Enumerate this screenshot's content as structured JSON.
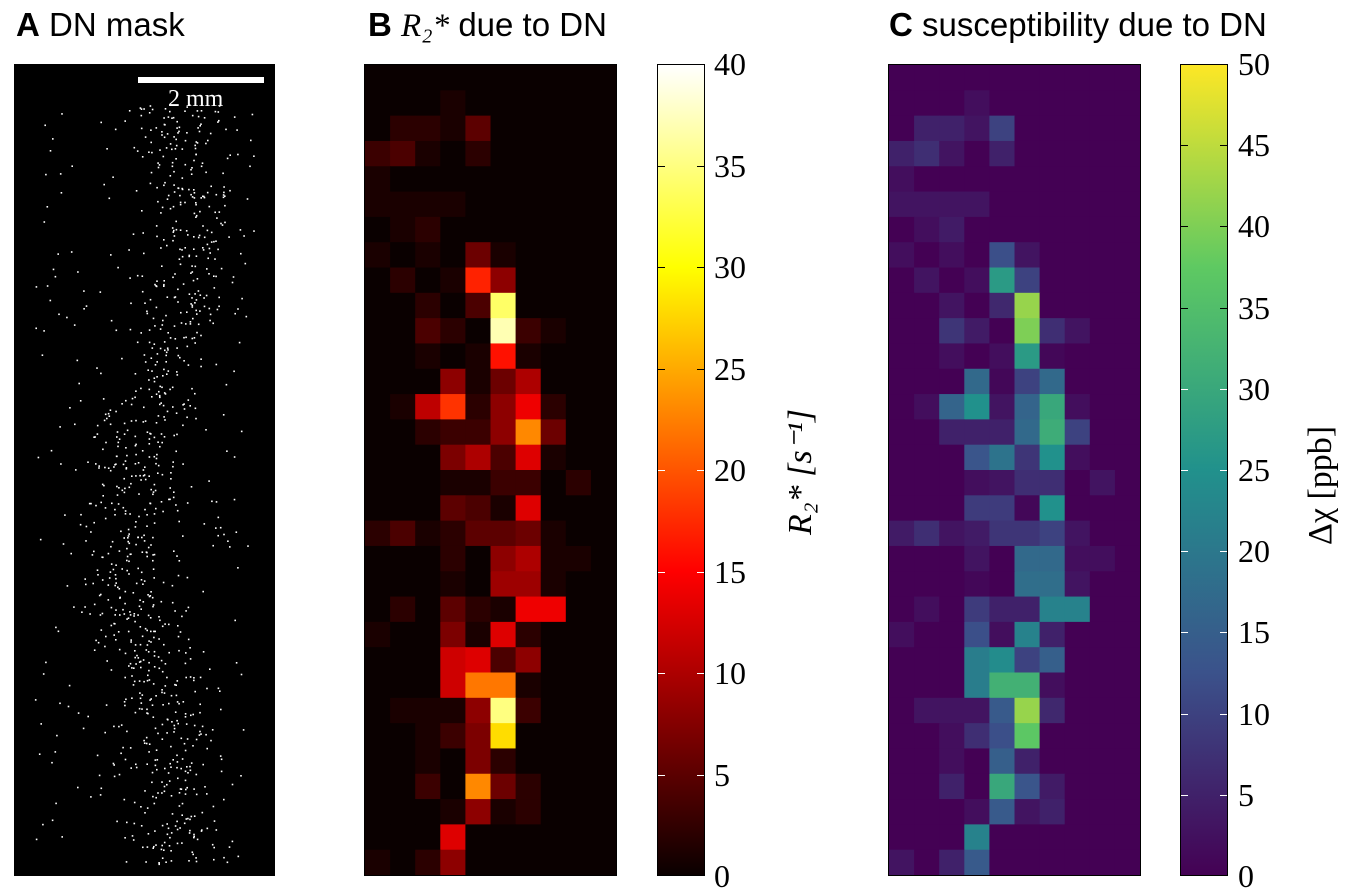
{
  "panels": {
    "a": {
      "letter": "A",
      "title": "DN mask",
      "scalebar_label": "2 mm"
    },
    "b": {
      "letter": "B",
      "title_math": "R₂*",
      "title_rest": " due to DN",
      "colorbar_label": "R₂* [s⁻¹]",
      "ticks": [
        "0",
        "5",
        "10",
        "15",
        "20",
        "25",
        "30",
        "35",
        "40"
      ],
      "vmin": 0,
      "vmax": 40
    },
    "c": {
      "letter": "C",
      "title": "susceptibility due to DN",
      "colorbar_label": "Δχ [ppb]",
      "ticks": [
        "0",
        "5",
        "10",
        "15",
        "20",
        "25",
        "30",
        "35",
        "40",
        "45",
        "50"
      ],
      "vmin": 0,
      "vmax": 50
    }
  },
  "chart_data": [
    {
      "type": "heatmap",
      "title": "R2* due to DN",
      "colormap": "hot",
      "unit": "s^-1",
      "range": [
        0,
        40
      ],
      "grid_cols": 10,
      "grid_rows": 32,
      "values": [
        [
          0,
          0,
          0,
          0,
          0,
          0,
          0,
          0,
          0,
          0
        ],
        [
          0,
          0,
          0,
          1,
          0,
          0,
          0,
          0,
          0,
          0
        ],
        [
          0,
          2,
          2,
          1,
          5,
          0,
          0,
          0,
          0,
          0
        ],
        [
          3,
          4,
          1,
          0,
          2,
          0,
          0,
          0,
          0,
          0
        ],
        [
          1,
          0,
          0,
          0,
          0,
          0,
          0,
          0,
          0,
          0
        ],
        [
          1,
          1,
          1,
          1,
          0,
          0,
          0,
          0,
          0,
          0
        ],
        [
          0,
          1,
          2,
          0,
          0,
          0,
          0,
          0,
          0,
          0
        ],
        [
          1,
          0,
          1,
          0,
          6,
          1,
          0,
          0,
          0,
          0
        ],
        [
          0,
          2,
          0,
          1,
          17,
          8,
          0,
          0,
          0,
          0
        ],
        [
          0,
          0,
          2,
          0,
          4,
          34,
          0,
          0,
          0,
          0
        ],
        [
          0,
          0,
          4,
          2,
          0,
          37,
          3,
          1,
          0,
          0
        ],
        [
          0,
          0,
          1,
          0,
          1,
          16,
          1,
          0,
          0,
          0
        ],
        [
          0,
          0,
          0,
          8,
          1,
          6,
          10,
          0,
          0,
          0
        ],
        [
          0,
          1,
          11,
          18,
          2,
          8,
          14,
          2,
          0,
          0
        ],
        [
          0,
          0,
          2,
          3,
          3,
          8,
          23,
          6,
          0,
          0
        ],
        [
          0,
          0,
          0,
          7,
          10,
          4,
          13,
          1,
          0,
          0
        ],
        [
          0,
          0,
          0,
          1,
          1,
          3,
          3,
          0,
          2,
          0
        ],
        [
          0,
          0,
          0,
          5,
          4,
          1,
          13,
          0,
          0,
          0
        ],
        [
          2,
          4,
          1,
          2,
          5,
          5,
          6,
          1,
          0,
          0
        ],
        [
          0,
          0,
          0,
          2,
          0,
          8,
          10,
          1,
          1,
          0
        ],
        [
          0,
          0,
          0,
          1,
          0,
          9,
          9,
          1,
          0,
          0
        ],
        [
          0,
          2,
          0,
          5,
          2,
          1,
          14,
          14,
          0,
          0
        ],
        [
          1,
          0,
          0,
          7,
          1,
          13,
          2,
          0,
          0,
          0
        ],
        [
          0,
          0,
          0,
          12,
          13,
          4,
          8,
          0,
          0,
          0
        ],
        [
          0,
          0,
          0,
          12,
          22,
          22,
          1,
          0,
          0,
          0
        ],
        [
          0,
          1,
          1,
          1,
          8,
          35,
          3,
          0,
          0,
          0
        ],
        [
          0,
          0,
          1,
          3,
          7,
          28,
          0,
          0,
          0,
          0
        ],
        [
          0,
          0,
          1,
          0,
          7,
          2,
          0,
          0,
          0,
          0
        ],
        [
          0,
          0,
          3,
          0,
          23,
          6,
          2,
          0,
          0,
          0
        ],
        [
          0,
          0,
          0,
          1,
          8,
          1,
          2,
          0,
          0,
          0
        ],
        [
          0,
          0,
          0,
          13,
          0,
          0,
          0,
          0,
          0,
          0
        ],
        [
          1,
          0,
          2,
          8,
          0,
          0,
          0,
          0,
          0,
          0
        ]
      ]
    },
    {
      "type": "heatmap",
      "title": "susceptibility due to DN",
      "colormap": "viridis",
      "unit": "ppb",
      "range": [
        0,
        50
      ],
      "grid_cols": 10,
      "grid_rows": 32,
      "values": [
        [
          0,
          0,
          0,
          0,
          0,
          0,
          0,
          0,
          0,
          0
        ],
        [
          0,
          0,
          0,
          2,
          0,
          0,
          0,
          0,
          0,
          0
        ],
        [
          0,
          5,
          5,
          3,
          10,
          0,
          0,
          0,
          0,
          0
        ],
        [
          5,
          7,
          3,
          0,
          5,
          0,
          0,
          0,
          0,
          0
        ],
        [
          2,
          0,
          0,
          0,
          0,
          0,
          0,
          0,
          0,
          0
        ],
        [
          3,
          3,
          3,
          3,
          0,
          0,
          0,
          0,
          0,
          0
        ],
        [
          0,
          2,
          4,
          0,
          0,
          0,
          0,
          0,
          0,
          0
        ],
        [
          2,
          0,
          2,
          0,
          12,
          3,
          0,
          0,
          0,
          0
        ],
        [
          0,
          3,
          0,
          2,
          27,
          10,
          0,
          0,
          0,
          0
        ],
        [
          0,
          0,
          3,
          0,
          6,
          42,
          0,
          0,
          0,
          0
        ],
        [
          0,
          0,
          8,
          4,
          0,
          40,
          7,
          3,
          0,
          0
        ],
        [
          0,
          0,
          2,
          0,
          2,
          27,
          1,
          0,
          0,
          0
        ],
        [
          0,
          0,
          0,
          17,
          1,
          10,
          17,
          0,
          0,
          0
        ],
        [
          0,
          2,
          16,
          25,
          3,
          16,
          30,
          2,
          0,
          0
        ],
        [
          0,
          0,
          5,
          5,
          5,
          17,
          31,
          10,
          0,
          0
        ],
        [
          0,
          0,
          0,
          13,
          19,
          8,
          25,
          2,
          0,
          0
        ],
        [
          0,
          0,
          0,
          2,
          3,
          7,
          7,
          0,
          3,
          0
        ],
        [
          0,
          0,
          0,
          9,
          9,
          1,
          25,
          0,
          0,
          0
        ],
        [
          4,
          7,
          3,
          4,
          8,
          8,
          10,
          3,
          0,
          0
        ],
        [
          0,
          0,
          0,
          3,
          0,
          17,
          17,
          2,
          2,
          0
        ],
        [
          0,
          0,
          0,
          1,
          0,
          18,
          18,
          3,
          0,
          0
        ],
        [
          0,
          2,
          0,
          9,
          5,
          5,
          22,
          22,
          0,
          0
        ],
        [
          2,
          0,
          0,
          12,
          2,
          22,
          5,
          0,
          0,
          0
        ],
        [
          0,
          0,
          0,
          21,
          24,
          10,
          15,
          0,
          0,
          0
        ],
        [
          0,
          0,
          0,
          21,
          32,
          32,
          2,
          0,
          0,
          0
        ],
        [
          0,
          3,
          3,
          3,
          14,
          42,
          6,
          0,
          0,
          0
        ],
        [
          0,
          0,
          2,
          7,
          12,
          37,
          0,
          0,
          0,
          0
        ],
        [
          0,
          0,
          2,
          0,
          15,
          5,
          0,
          0,
          0,
          0
        ],
        [
          0,
          0,
          5,
          0,
          30,
          13,
          4,
          0,
          0,
          0
        ],
        [
          0,
          0,
          0,
          2,
          14,
          3,
          5,
          0,
          0,
          0
        ],
        [
          0,
          0,
          0,
          22,
          0,
          0,
          0,
          0,
          0,
          0
        ],
        [
          3,
          0,
          5,
          14,
          0,
          0,
          0,
          0,
          0,
          0
        ]
      ]
    }
  ]
}
